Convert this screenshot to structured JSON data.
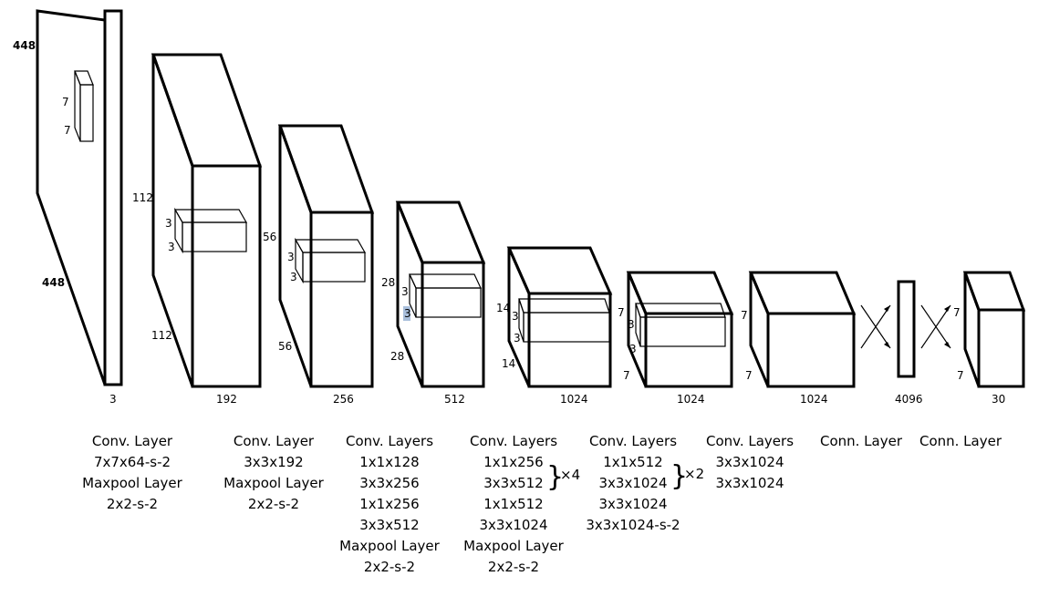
{
  "stage1": {
    "dims": {
      "height": "448",
      "width": "448",
      "depth": "3",
      "kernel_h": "7",
      "kernel_w": "7"
    },
    "caption": [
      "Conv. Layer",
      "7x7x64-s-2",
      "Maxpool Layer",
      "2x2-s-2"
    ]
  },
  "stage2": {
    "dims": {
      "height": "112",
      "width": "112",
      "depth": "192",
      "kernel_h": "3",
      "kernel_w": "3"
    },
    "caption": [
      "Conv. Layer",
      "3x3x192",
      "Maxpool Layer",
      "2x2-s-2"
    ]
  },
  "stage3": {
    "dims": {
      "height": "56",
      "width": "56",
      "depth": "256",
      "kernel_h": "3",
      "kernel_w": "3"
    },
    "caption": [
      "Conv. Layers",
      "1x1x128",
      "3x3x256",
      "1x1x256",
      "3x3x512",
      "Maxpool Layer",
      "2x2-s-2"
    ]
  },
  "stage4": {
    "dims": {
      "height": "28",
      "width": "28",
      "depth": "512",
      "kernel_h": "3",
      "kernel_w": "3"
    },
    "caption": [
      "Conv. Layers",
      "1x1x256",
      "3x3x512",
      "1x1x512",
      "3x3x1024",
      "Maxpool Layer",
      "2x2-s-2"
    ],
    "repeat": "×4"
  },
  "stage5": {
    "dims": {
      "height": "14",
      "width": "14",
      "depth": "1024",
      "kernel_h": "3",
      "kernel_w": "3"
    },
    "caption": [
      "Conv. Layers",
      "1x1x512",
      "3x3x1024",
      "3x3x1024",
      "3x3x1024-s-2"
    ],
    "repeat": "×2"
  },
  "stage6": {
    "dims": {
      "height": "7",
      "width": "7",
      "depth": "1024",
      "kernel_h": "3",
      "kernel_w": "3"
    },
    "caption": [
      "Conv. Layers",
      "3x3x1024",
      "3x3x1024"
    ]
  },
  "stage7": {
    "dims": {
      "height": "7",
      "width": "7",
      "depth": "1024"
    }
  },
  "fc1": {
    "dims": {
      "depth": "4096"
    },
    "caption": [
      "Conn. Layer"
    ]
  },
  "fc2": {
    "dims": {
      "height": "7",
      "width": "7",
      "depth": "30"
    },
    "caption": [
      "Conn. Layer"
    ]
  }
}
